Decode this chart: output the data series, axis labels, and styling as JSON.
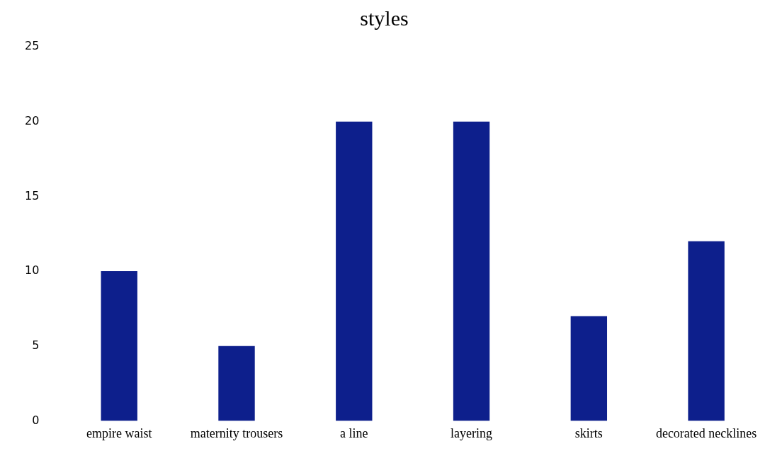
{
  "chart_data": {
    "type": "bar",
    "title": "styles",
    "categories": [
      "empire waist",
      "maternity trousers",
      "a line",
      "layering",
      "skirts",
      "decorated necklines"
    ],
    "values": [
      10,
      5,
      20,
      20,
      7,
      12
    ],
    "color": "#0d1f8c",
    "ylim": [
      0,
      25
    ],
    "yticks": [
      0,
      5,
      10,
      15,
      20,
      25
    ],
    "grid": false,
    "legend": false
  }
}
